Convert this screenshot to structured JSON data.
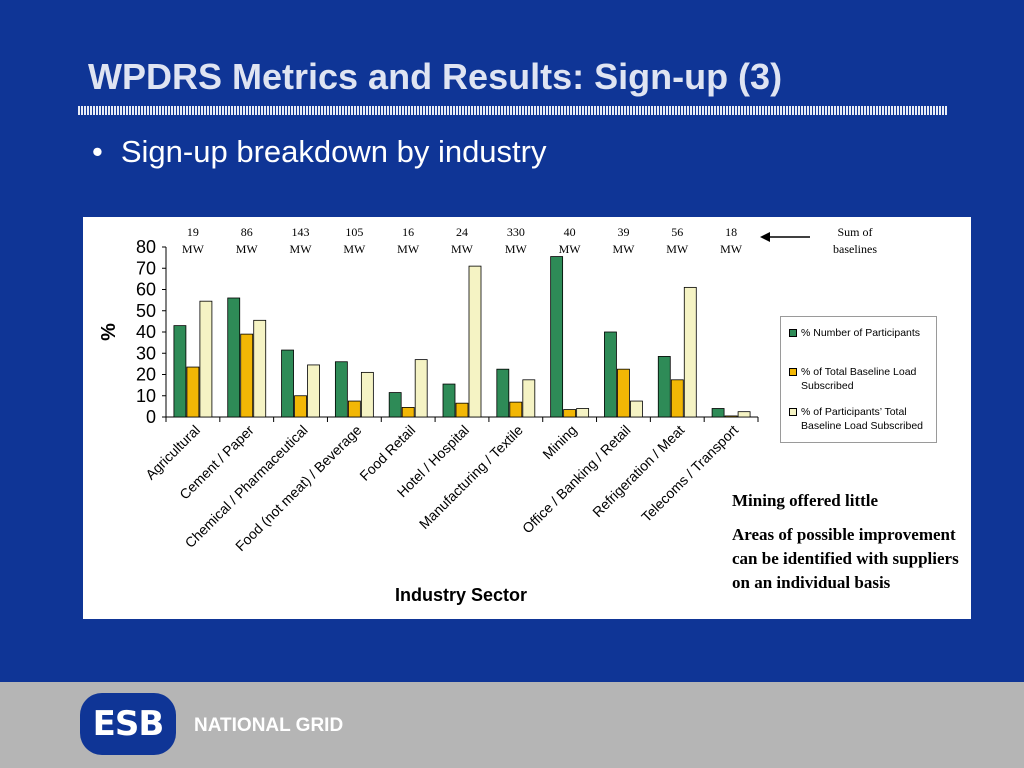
{
  "slide": {
    "title": "WPDRS Metrics and Results: Sign-up (3)",
    "bullet_symbol": "•",
    "bullet_text": "Sign-up breakdown by industry"
  },
  "notes": [
    "Mining offered little",
    "Areas of possible improvement can be identified with suppliers on an individual basis"
  ],
  "footer": {
    "logo_text": "ESB",
    "brand": "NATIONAL GRID"
  },
  "colors": {
    "background": "#0f3596",
    "series": [
      "#2e8b57",
      "#f2b705",
      "#f5f3c4"
    ]
  },
  "chart_data": {
    "type": "bar",
    "categories": [
      "Agricultural",
      "Cement / Paper",
      "Chemical / Pharmaceutical",
      "Food (not meat) / Beverage",
      "Food Retail",
      "Hotel / Hospital",
      "Manufacturing / Textile",
      "Mining",
      "Office / Banking / Retail",
      "Refrigeration / Meat",
      "Telecoms / Transport"
    ],
    "series": [
      {
        "name": "% Number of Participants",
        "values": [
          43,
          56,
          31.5,
          26,
          11.5,
          15.5,
          22.5,
          75.5,
          40,
          28.5,
          4
        ]
      },
      {
        "name": "% of Total Baseline Load Subscribed",
        "values": [
          23.5,
          39,
          10,
          7.5,
          4.5,
          6.5,
          7,
          3.5,
          22.5,
          17.5,
          0.5
        ]
      },
      {
        "name": "% of Participants’ Total Baseline Load Subscribed",
        "values": [
          54.5,
          45.5,
          24.5,
          21,
          27,
          71,
          17.5,
          4,
          7.5,
          61,
          2.5
        ]
      }
    ],
    "baseline_mw": [
      "19",
      "86",
      "143",
      "105",
      "16",
      "24",
      "330",
      "40",
      "39",
      "56",
      "18"
    ],
    "mw_unit": "MW",
    "baseline_annotation": "Sum of baselines",
    "xlabel": "Industry Sector",
    "ylabel": "%",
    "ylim": [
      0,
      80
    ],
    "yticks": [
      0,
      10,
      20,
      30,
      40,
      50,
      60,
      70,
      80
    ],
    "legend_position": "right",
    "grid": false
  }
}
